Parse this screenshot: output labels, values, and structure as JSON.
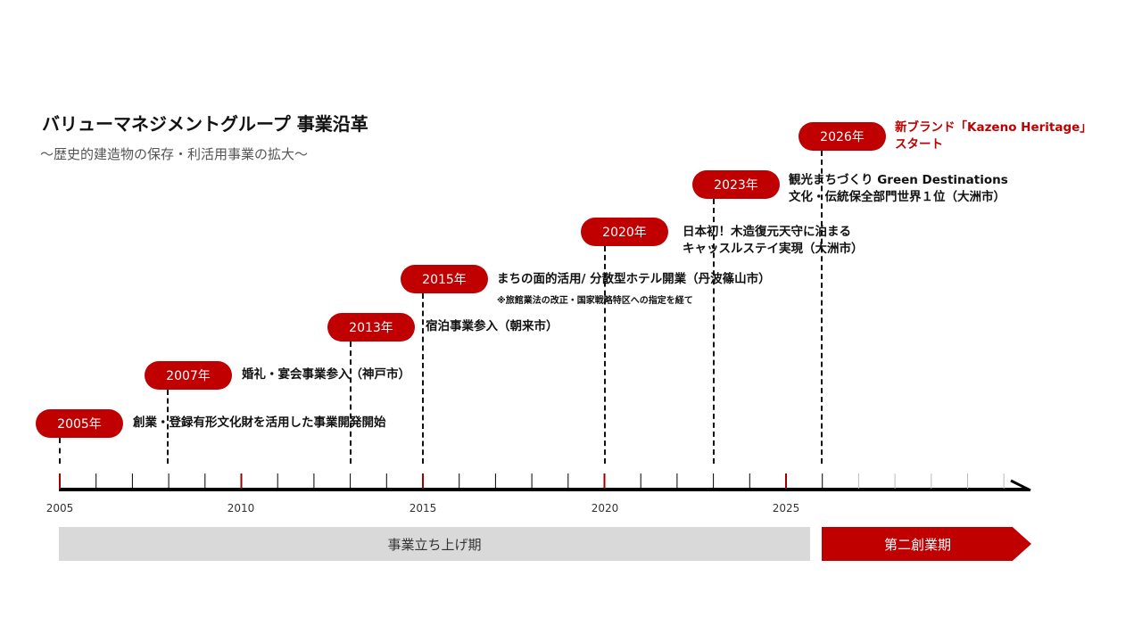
{
  "title": "バリューマネジメントグループ 事業沿革",
  "subtitle": "～歴史的建造物の保存・利活用事業の拡大～",
  "accent_color": "#c00000",
  "events": [
    {
      "year": "2005年",
      "lines": [
        "創業・登録有形文化財を活用した事業開発開始"
      ]
    },
    {
      "year": "2007年",
      "lines": [
        "婚礼・宴会事業参入（神戸市）"
      ]
    },
    {
      "year": "2013年",
      "lines": [
        "宿泊事業参入（朝来市）"
      ]
    },
    {
      "year": "2015年",
      "lines": [
        "まちの面的活用/ 分散型ホテル開業（丹波篠山市）"
      ],
      "note": "※旅館業法の改正・国家戦略特区への指定を経て"
    },
    {
      "year": "2020年",
      "lines": [
        "日本初！木造復元天守に泊まる",
        "キャッスルステイ実現（大洲市）"
      ]
    },
    {
      "year": "2023年",
      "lines": [
        "観光まちづくり Green Destinations",
        "文化・伝統保全部門世界１位（大洲市）"
      ]
    },
    {
      "year": "2026年",
      "lines": [
        "新ブランド「Kazeno Heritage」",
        "スタート"
      ]
    }
  ],
  "axis_labels": [
    "2005",
    "2010",
    "2015",
    "2020",
    "2025"
  ],
  "phases": [
    {
      "label": "事業立ち上げ期"
    },
    {
      "label": "第二創業期"
    }
  ]
}
